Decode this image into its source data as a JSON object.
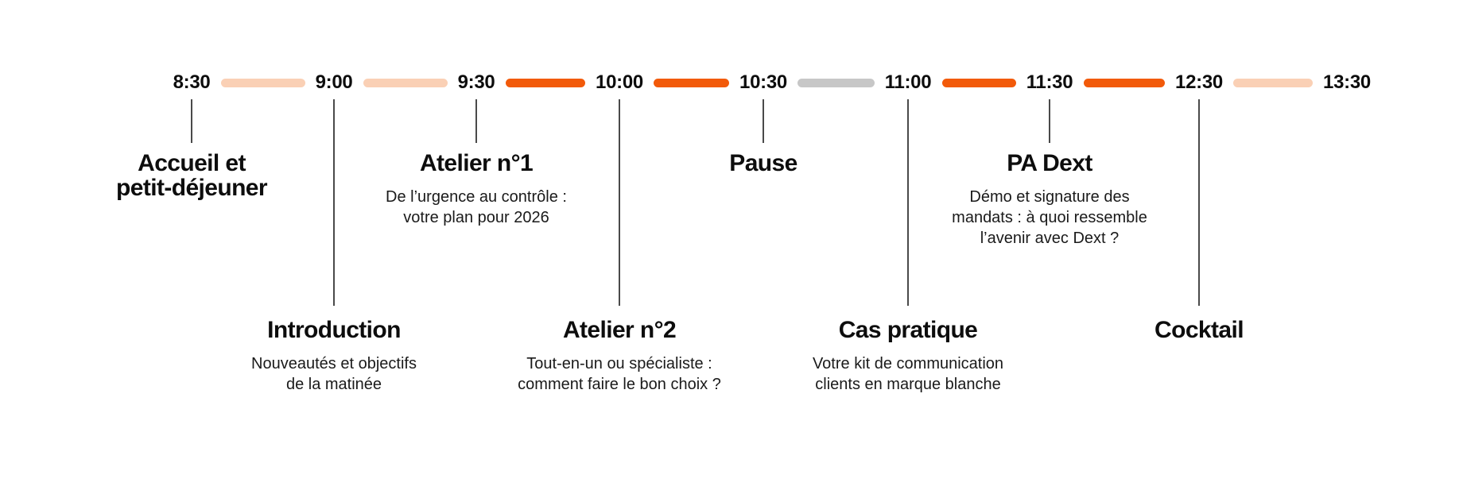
{
  "timeline": {
    "ticks": [
      "8:30",
      "9:00",
      "9:30",
      "10:00",
      "10:30",
      "11:00",
      "11:30",
      "12:30",
      "13:30"
    ],
    "segments": [
      {
        "from": "8:30",
        "to": "9:00",
        "color": "#FAD0B5"
      },
      {
        "from": "9:00",
        "to": "9:30",
        "color": "#FAD0B5"
      },
      {
        "from": "9:30",
        "to": "10:00",
        "color": "#F25A0A"
      },
      {
        "from": "10:00",
        "to": "10:30",
        "color": "#F25A0A"
      },
      {
        "from": "10:30",
        "to": "11:00",
        "color": "#C7C7C7"
      },
      {
        "from": "11:00",
        "to": "11:30",
        "color": "#F25A0A"
      },
      {
        "from": "11:30",
        "to": "12:30",
        "color": "#F25A0A"
      },
      {
        "from": "12:30",
        "to": "13:30",
        "color": "#FAD0B5"
      }
    ]
  },
  "events": [
    {
      "time": "8:30",
      "row": "top",
      "title": "Accueil et\npetit-déjeuner",
      "subtitle": ""
    },
    {
      "time": "9:00",
      "row": "bottom",
      "title": "Introduction",
      "subtitle": "Nouveautés et objectifs\nde la matinée"
    },
    {
      "time": "9:30",
      "row": "top",
      "title": "Atelier n°1",
      "subtitle": "De l’urgence au contrôle :\nvotre plan pour 2026"
    },
    {
      "time": "10:00",
      "row": "bottom",
      "title": "Atelier n°2",
      "subtitle": "Tout-en-un ou spécialiste :\ncomment faire le bon choix ?"
    },
    {
      "time": "10:30",
      "row": "top",
      "title": "Pause",
      "subtitle": ""
    },
    {
      "time": "11:00",
      "row": "bottom",
      "title": "Cas pratique",
      "subtitle": "Votre kit de communication\nclients en marque blanche"
    },
    {
      "time": "11:30",
      "row": "top",
      "title": "PA Dext",
      "subtitle": "Démo et signature des\nmandats : à quoi ressemble\nl’avenir avec Dext ?"
    },
    {
      "time": "12:30",
      "row": "bottom",
      "title": "Cocktail",
      "subtitle": ""
    }
  ],
  "colors": {
    "accent_orange": "#F25A0A",
    "accent_peach": "#FAD0B5",
    "accent_gray": "#C7C7C7",
    "connector_line": "#4a4a4a",
    "text": "#0d0d0d"
  }
}
